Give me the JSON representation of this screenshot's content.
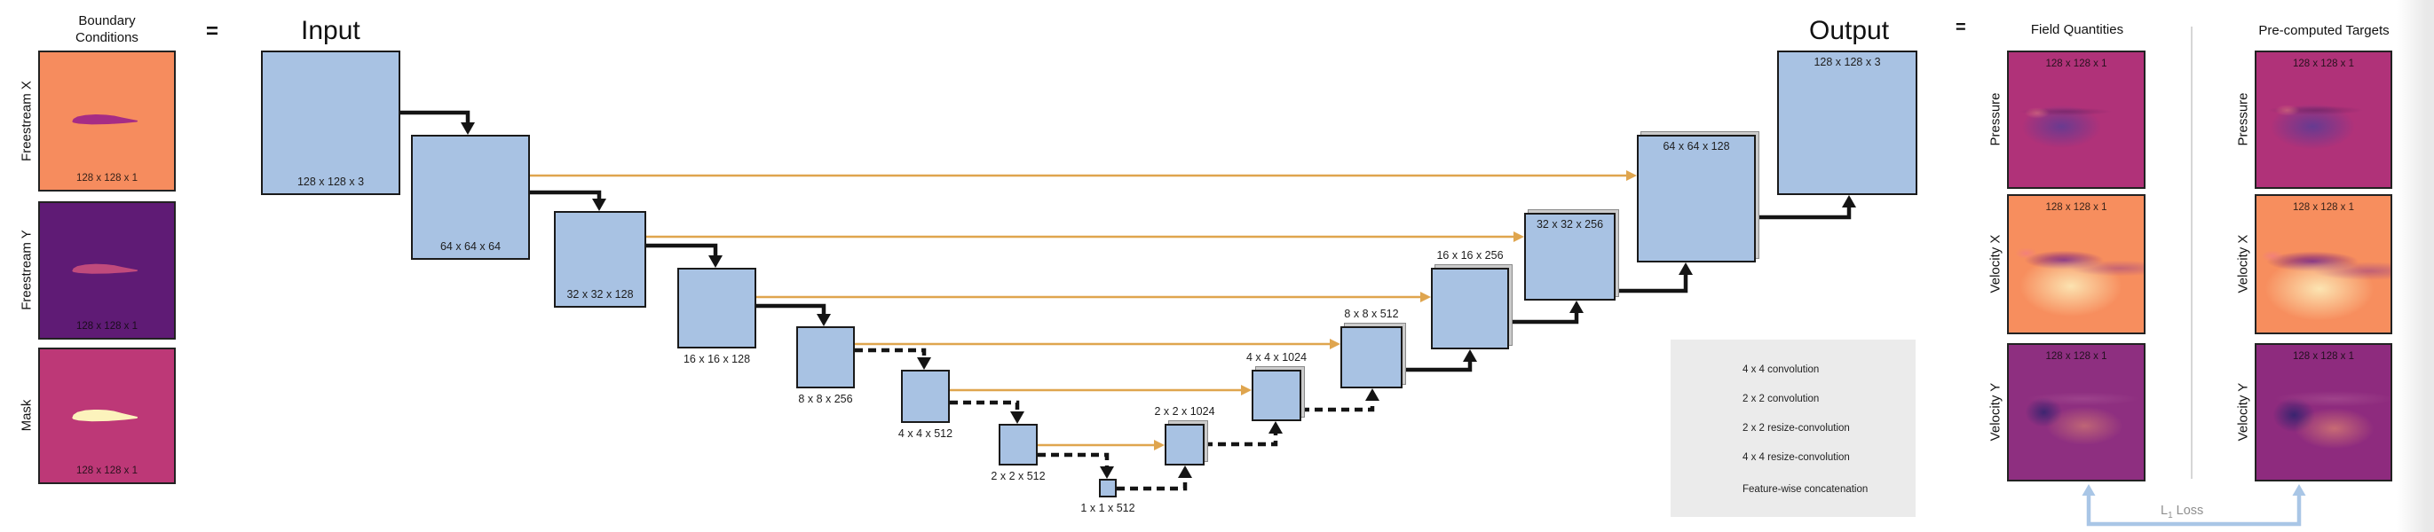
{
  "colors": {
    "block_blue": "#a8c2e3",
    "outline_black": "#1a1a1a",
    "concat_orange": "#dfa54e",
    "legend_bg": "#ebebeb",
    "loss_blue": "#a9c6e6",
    "loss_text_gray": "#8f8f8f",
    "freestream_x_bg": "#f68c5e",
    "freestream_x_foil": "#a62c85",
    "freestream_y_bg": "#5f1b75",
    "freestream_y_foil": "#c04a7c",
    "mask_bg": "#bd3877",
    "mask_foil": "#fcf3bc",
    "pressure_bg": "#b03279",
    "velocity_x_bg": "#f78e5e",
    "velocity_y_bg": "#8e2f80"
  },
  "boundary_conditions": {
    "title_line1": "Boundary",
    "title_line2": "Conditions",
    "equals": "=",
    "panels": [
      {
        "id": "freestream-x",
        "label": "Freestream X",
        "dims": "128 x 128 x 1"
      },
      {
        "id": "freestream-y",
        "label": "Freestream Y",
        "dims": "128 x 128 x 1"
      },
      {
        "id": "mask",
        "label": "Mask",
        "dims": "128 x 128 x 1"
      }
    ]
  },
  "unet": {
    "input_title": "Input",
    "output_title": "Output",
    "blocks": [
      {
        "id": "enc-128",
        "dims": "128 x 128 x 3"
      },
      {
        "id": "enc-64",
        "dims": "64 x 64 x 64"
      },
      {
        "id": "enc-32",
        "dims": "32 x 32 x 128"
      },
      {
        "id": "enc-16",
        "dims": "16 x 16 x 128"
      },
      {
        "id": "enc-8",
        "dims": "8 x 8 x 256"
      },
      {
        "id": "enc-4",
        "dims": "4 x 4 x 512"
      },
      {
        "id": "enc-2",
        "dims": "2 x 2 x 512"
      },
      {
        "id": "enc-1",
        "dims": "1 x 1 x 512"
      },
      {
        "id": "dec-2",
        "dims": "2 x 2 x 1024"
      },
      {
        "id": "dec-4",
        "dims": "4 x 4 x 1024"
      },
      {
        "id": "dec-8",
        "dims": "8 x 8 x 512"
      },
      {
        "id": "dec-16",
        "dims": "16 x 16 x 256"
      },
      {
        "id": "dec-32",
        "dims": "32 x 32 x 256"
      },
      {
        "id": "dec-64",
        "dims": "64 x 64 x 128"
      },
      {
        "id": "out-128",
        "dims": "128 x 128 x 3"
      }
    ],
    "legend": {
      "items": [
        {
          "glyph": "conv4",
          "label": "4 x 4 convolution"
        },
        {
          "glyph": "conv2",
          "label": "2 x 2 convolution"
        },
        {
          "glyph": "rconv2",
          "label": "2 x 2 resize-convolution"
        },
        {
          "glyph": "rconv4",
          "label": "4 x 4 resize-convolution"
        },
        {
          "glyph": "concat",
          "label": "Feature-wise concatenation"
        }
      ]
    }
  },
  "outputs": {
    "equals": "=",
    "field_title": "Field Quantities",
    "target_title": "Pre-computed Targets",
    "rows": [
      {
        "label": "Pressure",
        "dims": "128 x 128 x 1"
      },
      {
        "label": "Velocity X",
        "dims": "128 x 128 x 1"
      },
      {
        "label": "Velocity Y",
        "dims": "128 x 128 x 1"
      }
    ],
    "loss_prefix": "L",
    "loss_sub": "1",
    "loss_suffix": " Loss"
  }
}
